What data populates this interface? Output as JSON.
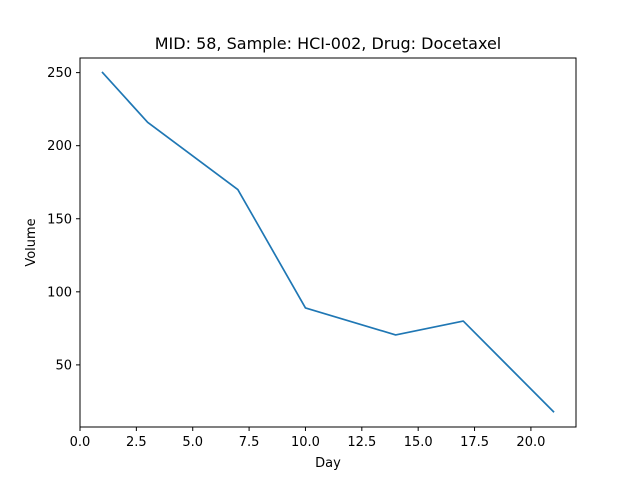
{
  "colors": {
    "series": "#1f77b4",
    "background": "#ffffff",
    "axis": "#000000"
  },
  "chart_data": {
    "type": "line",
    "title": "MID: 58, Sample: HCI-002, Drug: Docetaxel",
    "xlabel": "Day",
    "ylabel": "Volume",
    "xlim": [
      0,
      22
    ],
    "ylim": [
      7.5,
      260
    ],
    "x_ticks": [
      0.0,
      2.5,
      5.0,
      7.5,
      10.0,
      12.5,
      15.0,
      17.5,
      20.0
    ],
    "x_tick_labels": [
      "0.0",
      "2.5",
      "5.0",
      "7.5",
      "10.0",
      "12.5",
      "15.0",
      "17.5",
      "20.0"
    ],
    "y_ticks": [
      50,
      100,
      150,
      200,
      250
    ],
    "y_tick_labels": [
      "50",
      "100",
      "150",
      "200",
      "250"
    ],
    "grid": false,
    "series": [
      {
        "x": [
          1,
          3,
          7,
          10,
          14,
          17,
          21
        ],
        "values": [
          250,
          216,
          170,
          89,
          70.5,
          80,
          18
        ]
      }
    ]
  }
}
